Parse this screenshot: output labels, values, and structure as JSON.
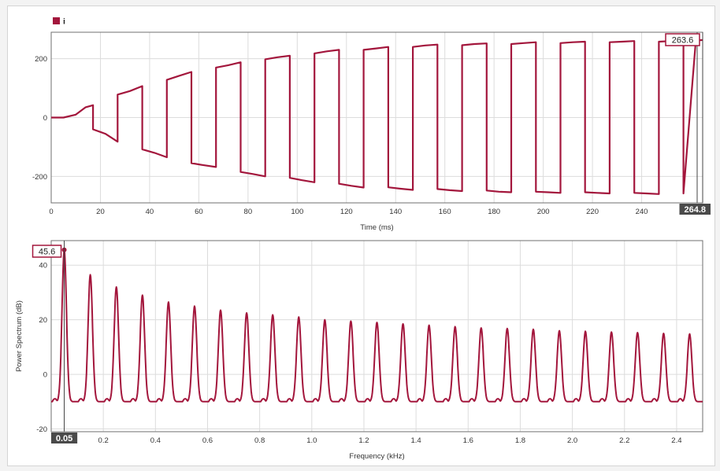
{
  "colors": {
    "series": "#a3163c",
    "grid": "#dcdcdc",
    "axis": "#333333",
    "cursor": "#444444",
    "cursor_label_bg": "#4a4a4a"
  },
  "chart_data": [
    {
      "type": "line",
      "legend": {
        "entries": [
          "i"
        ],
        "placement": "top-left"
      },
      "xlabel": "Time (ms)",
      "ylabel": "",
      "xlim": [
        0,
        264.8
      ],
      "ylim": [
        -290,
        290
      ],
      "xticks": [
        0,
        20,
        40,
        60,
        80,
        100,
        120,
        140,
        160,
        180,
        200,
        220,
        240
      ],
      "yticks": [
        -200,
        0,
        200
      ],
      "grid": true,
      "cursor": {
        "x": 264.8,
        "x_label": "264.8",
        "value_label": "263.6"
      },
      "series": [
        {
          "name": "i",
          "x": [
            0,
            5,
            10,
            14,
            17,
            17,
            22,
            27,
            27,
            32,
            37,
            37,
            42,
            47,
            47,
            52,
            57,
            57,
            62,
            67,
            67,
            72,
            77,
            77,
            82,
            87,
            87,
            92,
            97,
            97,
            102,
            107,
            107,
            112,
            117,
            117,
            122,
            127,
            127,
            132,
            137,
            137,
            142,
            147,
            147,
            152,
            157,
            157,
            162,
            167,
            167,
            172,
            177,
            177,
            182,
            187,
            187,
            192,
            197,
            197,
            202,
            207,
            207,
            212,
            217,
            217,
            222,
            227,
            227,
            232,
            237,
            237,
            242,
            247,
            247,
            252,
            257,
            257,
            262,
            264.8
          ],
          "y": [
            0,
            0,
            10,
            35,
            42,
            -40,
            -55,
            -82,
            78,
            90,
            107,
            -108,
            -120,
            -135,
            128,
            142,
            155,
            -155,
            -162,
            -168,
            170,
            178,
            188,
            -185,
            -192,
            -200,
            198,
            205,
            210,
            -205,
            -213,
            -220,
            218,
            225,
            230,
            -225,
            -232,
            -238,
            230,
            235,
            240,
            -237,
            -242,
            -246,
            240,
            245,
            248,
            -243,
            -247,
            -250,
            246,
            250,
            252,
            -248,
            -252,
            -254,
            250,
            253,
            256,
            -252,
            -254,
            -256,
            253,
            256,
            258,
            -254,
            -256,
            -258,
            256,
            258,
            260,
            -256,
            -258,
            -260,
            258,
            260,
            262,
            -258,
            262,
            263.6
          ]
        }
      ]
    },
    {
      "type": "line",
      "xlabel": "Frequency (kHz)",
      "ylabel": "Power Spectrum (dB)",
      "xlim": [
        0,
        2.5
      ],
      "ylim": [
        -21,
        49
      ],
      "xticks": [
        0.2,
        0.4,
        0.6,
        0.8,
        1.0,
        1.2,
        1.4,
        1.6,
        1.8,
        2.0,
        2.2,
        2.4
      ],
      "xticklabels": [
        "0.2",
        "0.4",
        "0.6",
        "0.8",
        "1.0",
        "1.2",
        "1.4",
        "1.6",
        "1.8",
        "2.0",
        "2.2",
        "2.4"
      ],
      "yticks": [
        -20,
        0,
        20,
        40
      ],
      "grid": true,
      "cursor": {
        "x": 0.05,
        "x_label": "0.05",
        "value_label": "45.6"
      },
      "series": [
        {
          "name": "",
          "baseline_db": -10,
          "peaks": {
            "f": [
              0.05,
              0.15,
              0.25,
              0.35,
              0.45,
              0.55,
              0.65,
              0.75,
              0.85,
              0.95,
              1.05,
              1.15,
              1.25,
              1.35,
              1.45,
              1.55,
              1.65,
              1.75,
              1.85,
              1.95,
              2.05,
              2.15,
              2.25,
              2.35,
              2.45
            ],
            "db": [
              45.6,
              36.5,
              32,
              29,
              26.5,
              25,
              23.5,
              22.5,
              21.8,
              21,
              20,
              19.5,
              19,
              18.5,
              18,
              17.5,
              17,
              16.8,
              16.5,
              16,
              15.8,
              15.5,
              15.3,
              15,
              14.8
            ]
          }
        }
      ]
    }
  ]
}
